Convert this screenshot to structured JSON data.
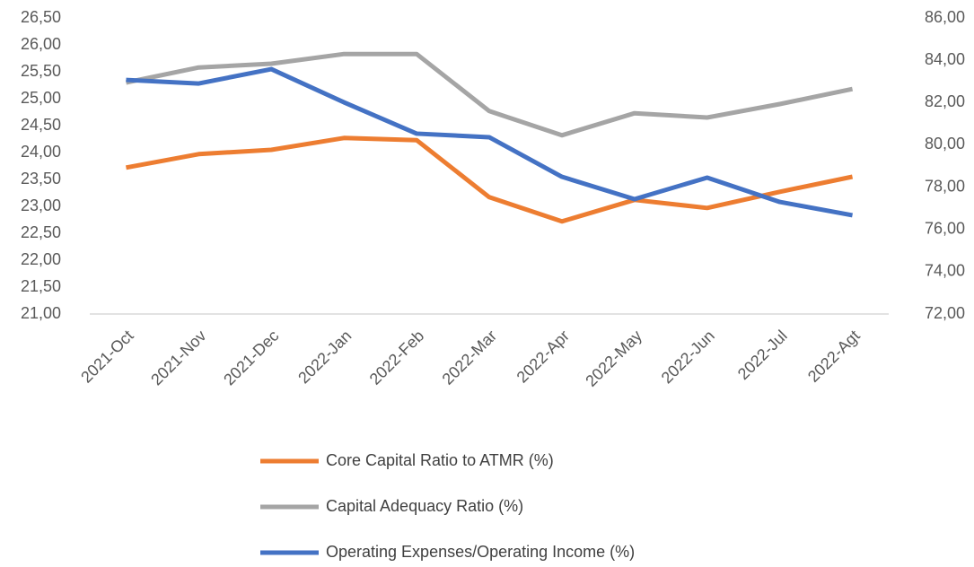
{
  "chart_data": {
    "type": "line",
    "categories": [
      "2021-Oct",
      "2021-Nov",
      "2021-Dec",
      "2022-Jan",
      "2022-Feb",
      "2022-Mar",
      "2022-Apr",
      "2022-May",
      "2022-Jun",
      "2022-Jul",
      "2022-Agt"
    ],
    "series": [
      {
        "name": "Core Capital Ratio to ATMR (%)",
        "color": "#ed7d31",
        "axis": "y",
        "values": [
          23.72,
          23.97,
          24.05,
          24.27,
          24.23,
          23.17,
          22.72,
          23.12,
          22.97,
          23.27,
          23.55
        ]
      },
      {
        "name": "Capital Adequacy Ratio (%)",
        "color": "#a5a5a5",
        "axis": "y",
        "values": [
          25.3,
          25.58,
          25.65,
          25.83,
          25.83,
          24.77,
          24.32,
          24.73,
          24.65,
          24.9,
          25.18
        ]
      },
      {
        "name": "Operating Expenses/Operating Income (%)",
        "color": "#4472c4",
        "axis": "y2",
        "values": [
          83.07,
          82.9,
          83.58,
          82.01,
          80.53,
          80.36,
          78.49,
          77.43,
          78.45,
          77.3,
          76.67
        ]
      }
    ],
    "ylim": [
      21,
      26.5
    ],
    "yticks": [
      {
        "value": 21,
        "label": "21,00"
      },
      {
        "value": 21.5,
        "label": "21,50"
      },
      {
        "value": 22,
        "label": "22,00"
      },
      {
        "value": 22.5,
        "label": "22,50"
      },
      {
        "value": 23,
        "label": "23,00"
      },
      {
        "value": 23.5,
        "label": "23,50"
      },
      {
        "value": 24,
        "label": "24,00"
      },
      {
        "value": 24.5,
        "label": "24,50"
      },
      {
        "value": 25,
        "label": "25,00"
      },
      {
        "value": 25.5,
        "label": "25,50"
      },
      {
        "value": 26,
        "label": "26,00"
      },
      {
        "value": 26.5,
        "label": "26,50"
      }
    ],
    "y2lim": [
      72,
      86
    ],
    "y2ticks": [
      {
        "value": 72,
        "label": "72,00"
      },
      {
        "value": 74,
        "label": "74,00"
      },
      {
        "value": 76,
        "label": "76,00"
      },
      {
        "value": 78,
        "label": "78,00"
      },
      {
        "value": 80,
        "label": "80,00"
      },
      {
        "value": 82,
        "label": "82,00"
      },
      {
        "value": 84,
        "label": "84,00"
      },
      {
        "value": 86,
        "label": "86,00"
      }
    ],
    "grid": false,
    "legend": "bottom"
  }
}
